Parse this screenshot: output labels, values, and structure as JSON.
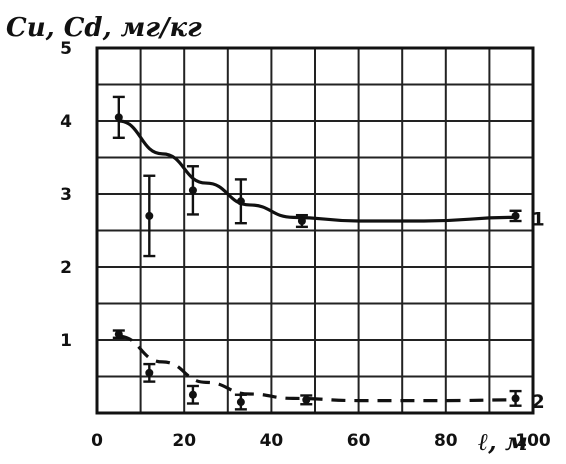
{
  "chart_data": {
    "type": "scatter",
    "ylabel": "Cu, Cd, мг/кг",
    "xlabel": "ℓ, м",
    "xlim": [
      0,
      100
    ],
    "ylim": [
      0,
      5
    ],
    "x_ticks": [
      "0",
      "20",
      "40",
      "60",
      "80",
      "100"
    ],
    "y_ticks": [
      "1",
      "2",
      "3",
      "4",
      "5"
    ],
    "grid": true,
    "series": [
      {
        "name": "1",
        "line_style": "solid",
        "points": [
          {
            "x": 5,
            "y": 4.05,
            "err": 0.28
          },
          {
            "x": 12,
            "y": 2.7,
            "err": 0.55
          },
          {
            "x": 22,
            "y": 3.05,
            "err": 0.33
          },
          {
            "x": 33,
            "y": 2.9,
            "err": 0.3
          },
          {
            "x": 47,
            "y": 2.63,
            "err": 0.08
          },
          {
            "x": 96,
            "y": 2.7,
            "err": 0.07
          }
        ],
        "fit": [
          [
            5,
            4.0
          ],
          [
            15,
            3.55
          ],
          [
            25,
            3.15
          ],
          [
            35,
            2.85
          ],
          [
            45,
            2.68
          ],
          [
            60,
            2.63
          ],
          [
            75,
            2.63
          ],
          [
            96,
            2.68
          ]
        ]
      },
      {
        "name": "2",
        "line_style": "dashed",
        "points": [
          {
            "x": 5,
            "y": 1.08,
            "err": 0.05
          },
          {
            "x": 12,
            "y": 0.55,
            "err": 0.12
          },
          {
            "x": 22,
            "y": 0.25,
            "err": 0.12
          },
          {
            "x": 33,
            "y": 0.15,
            "err": 0.1
          },
          {
            "x": 48,
            "y": 0.18,
            "err": 0.06
          },
          {
            "x": 96,
            "y": 0.2,
            "err": 0.1
          }
        ],
        "fit": [
          [
            5,
            1.05
          ],
          [
            15,
            0.7
          ],
          [
            25,
            0.42
          ],
          [
            35,
            0.26
          ],
          [
            45,
            0.2
          ],
          [
            60,
            0.17
          ],
          [
            80,
            0.17
          ],
          [
            96,
            0.18
          ]
        ]
      }
    ]
  }
}
